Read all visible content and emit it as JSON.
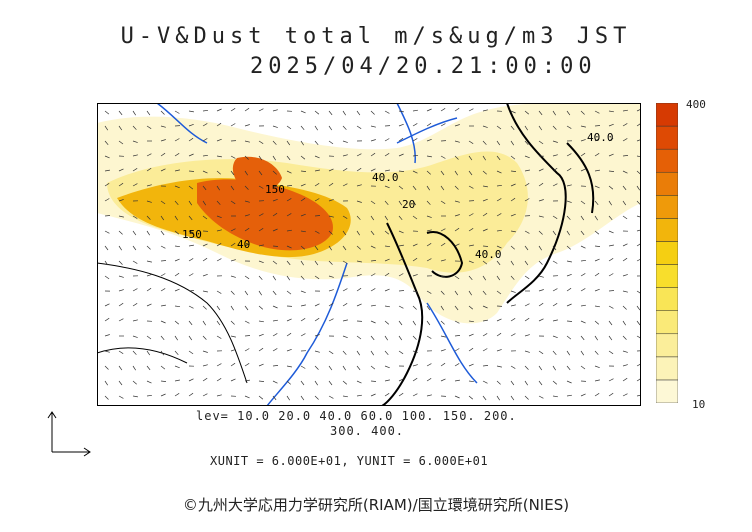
{
  "header": {
    "title_line1": "U-V&Dust total m/s&ug/m3 JST",
    "title_line2": "2025/04/20.21:00:00"
  },
  "colorbar": {
    "max_label": "400",
    "min_label": "10",
    "colors": [
      "#fdf8d6",
      "#fcf3b8",
      "#fbee9a",
      "#faea78",
      "#f9e556",
      "#f8de2c",
      "#f5cf12",
      "#f2b50c",
      "#ef9a0a",
      "#ea7d08",
      "#e56006",
      "#de4a04",
      "#d63a02"
    ]
  },
  "contour_labels": [
    "40.0",
    "40.0",
    "40.0",
    "150",
    "150",
    "40",
    "20"
  ],
  "levels": {
    "line1": "lev= 10.0 20.0 40.0 60.0 100. 150. 200.",
    "line2": "300. 400."
  },
  "units": "XUNIT = 6.000E+01, YUNIT = 6.000E+01",
  "copyright": "©九州大学応用力学研究所(RIAM)/国立環境研究所(NIES)"
}
